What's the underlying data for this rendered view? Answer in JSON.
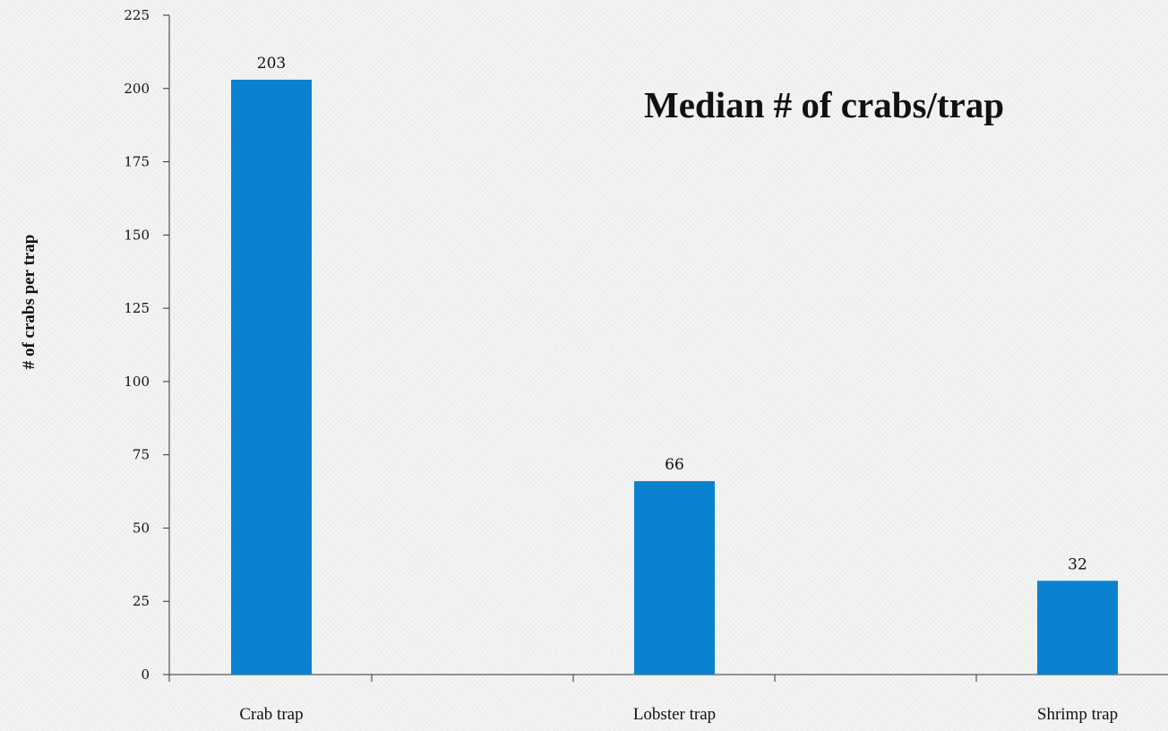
{
  "chart_data": {
    "type": "bar",
    "title": "Median # of crabs/trap",
    "xlabel": "",
    "ylabel": "# of crabs per trap",
    "categories": [
      "Crab trap",
      "Lobster trap",
      "Shrimp trap"
    ],
    "values": [
      203,
      66,
      32
    ],
    "data_labels": [
      "203",
      "66",
      "32"
    ],
    "ylim": [
      0,
      225
    ],
    "yticks": [
      0,
      25,
      50,
      75,
      100,
      125,
      150,
      175,
      200,
      225
    ],
    "ytick_labels": [
      "0",
      "25",
      "50",
      "75",
      "100",
      "125",
      "150",
      "175",
      "200",
      "225"
    ],
    "bar_color": "#0a82d0",
    "grid": false,
    "legend": "none"
  }
}
